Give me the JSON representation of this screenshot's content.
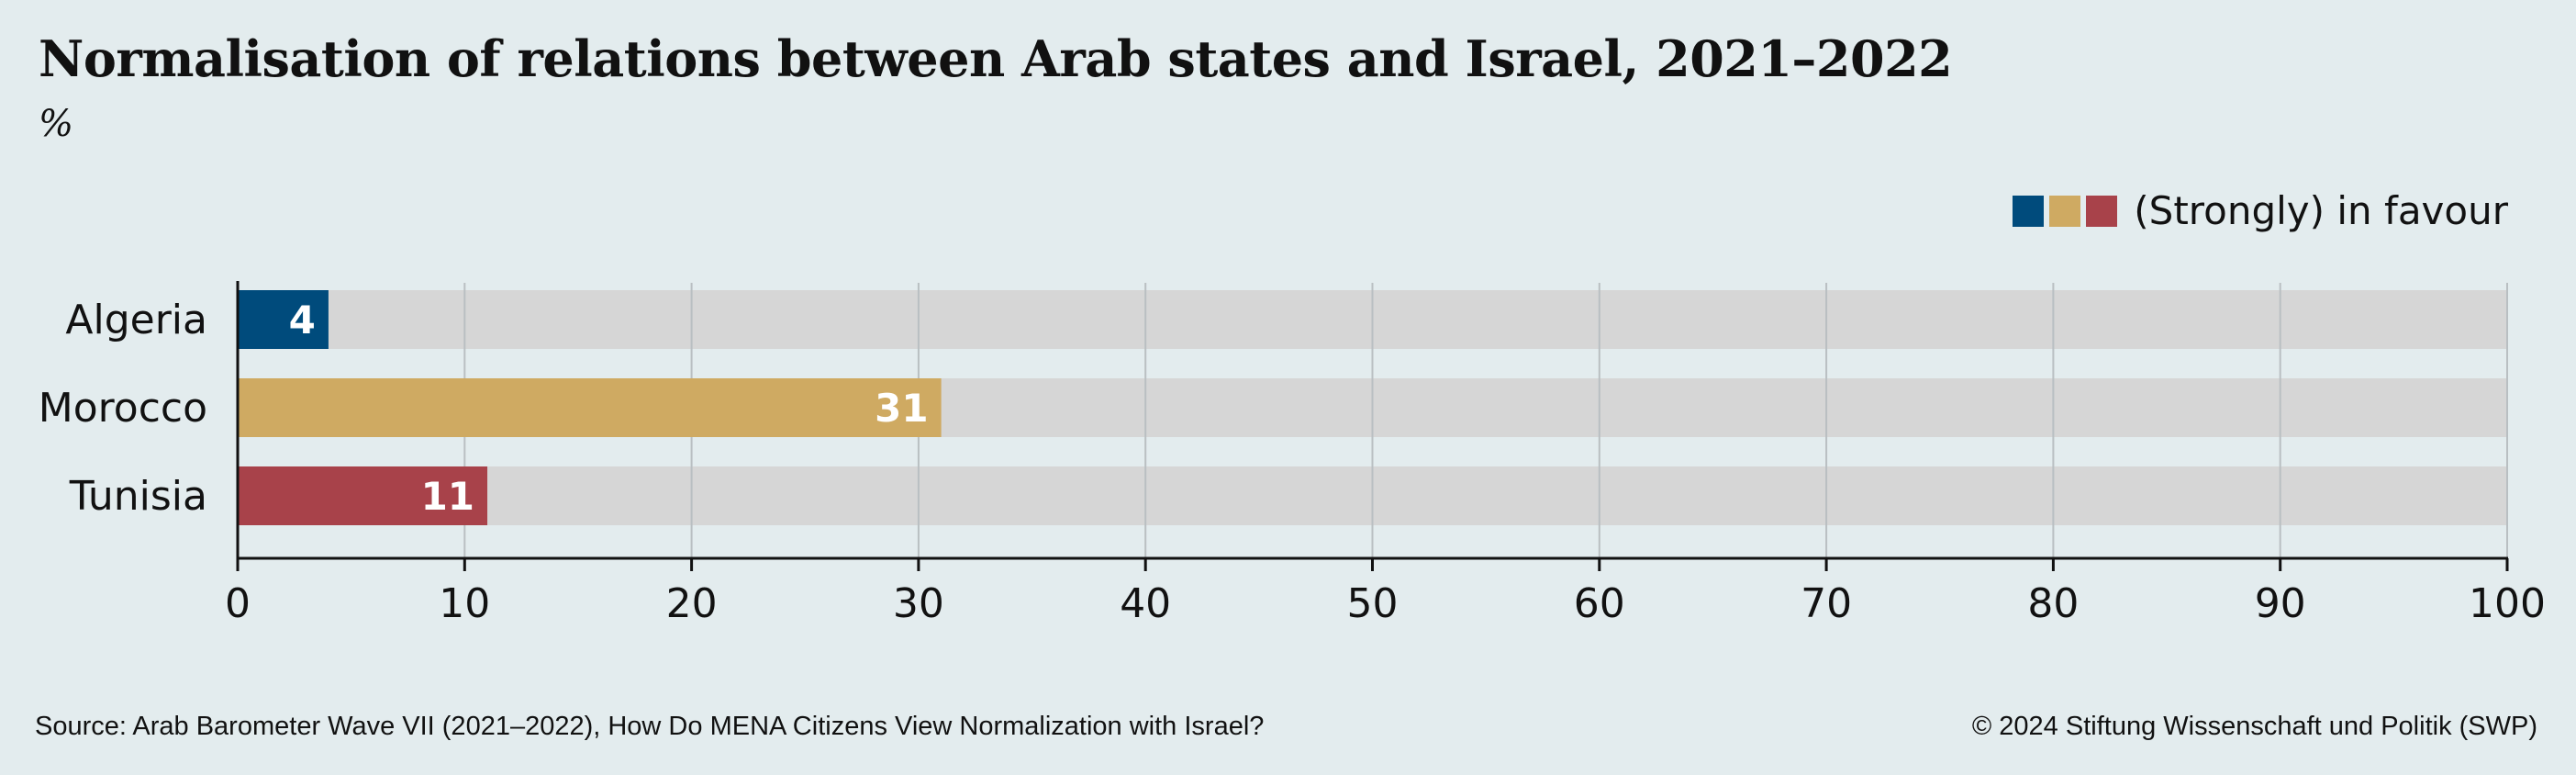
{
  "header": {
    "title": "Normalisation of relations between Arab states and Israel, 2021–2022",
    "unit": "%"
  },
  "legend": {
    "label": "(Strongly) in favour",
    "colors": [
      "#004b7c",
      "#cfaa62",
      "#a8424a"
    ]
  },
  "chart_data": {
    "type": "bar",
    "orientation": "horizontal",
    "title": "Normalisation of relations between Arab states and Israel, 2021–2022",
    "subtitle": "%",
    "categories": [
      "Algeria",
      "Morocco",
      "Tunisia"
    ],
    "values": [
      4,
      31,
      11
    ],
    "colors": [
      "#004b7c",
      "#cfaa62",
      "#a8424a"
    ],
    "background_bar_color": "#d6d6d6",
    "xlim": [
      0,
      100
    ],
    "xticks": [
      0,
      10,
      20,
      30,
      40,
      50,
      60,
      70,
      80,
      90,
      100
    ],
    "grid": true,
    "legend_position": "top-right"
  },
  "footer": {
    "source": "Source: Arab Barometer Wave VII (2021–2022), How Do MENA Citizens View Normalization with Israel?",
    "copyright": "© 2024 Stiftung Wissenschaft und Politik (SWP)"
  }
}
